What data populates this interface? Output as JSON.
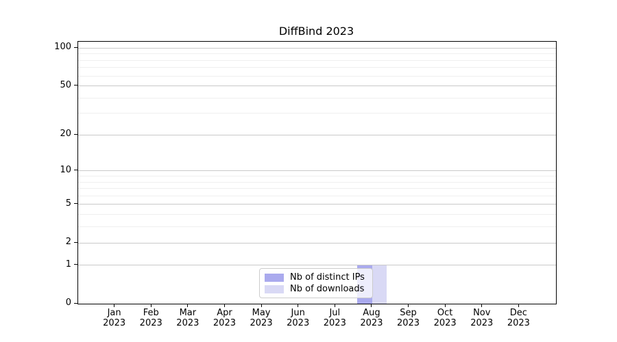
{
  "chart_data": {
    "type": "bar",
    "title": "DiffBind 2023",
    "categories": [
      "Jan 2023",
      "Feb 2023",
      "Mar 2023",
      "Apr 2023",
      "May 2023",
      "Jun 2023",
      "Jul 2023",
      "Aug 2023",
      "Sep 2023",
      "Oct 2023",
      "Nov 2023",
      "Dec 2023"
    ],
    "series": [
      {
        "name": "Nb of distinct IPs",
        "color": "#aaaaee",
        "values": [
          0,
          0,
          0,
          0,
          0,
          0,
          0,
          1,
          0,
          0,
          0,
          0
        ]
      },
      {
        "name": "Nb of downloads",
        "color": "#d9d9f5",
        "values": [
          0,
          0,
          0,
          0,
          0,
          0,
          0,
          1,
          0,
          0,
          0,
          0
        ]
      }
    ],
    "xlabel": "",
    "ylabel": "",
    "yscale": "log1p",
    "yticks": [
      0,
      1,
      2,
      5,
      10,
      20,
      50,
      100
    ],
    "minor_yticks": [
      3,
      4,
      6,
      7,
      8,
      9,
      30,
      40,
      60,
      70,
      80,
      90
    ],
    "ylim": [
      0,
      112
    ],
    "grid": true,
    "legend_position": "lower center"
  },
  "colors": {
    "major_grid": "#c9c9c9",
    "minor_grid": "#efefef",
    "spine": "#000000"
  }
}
